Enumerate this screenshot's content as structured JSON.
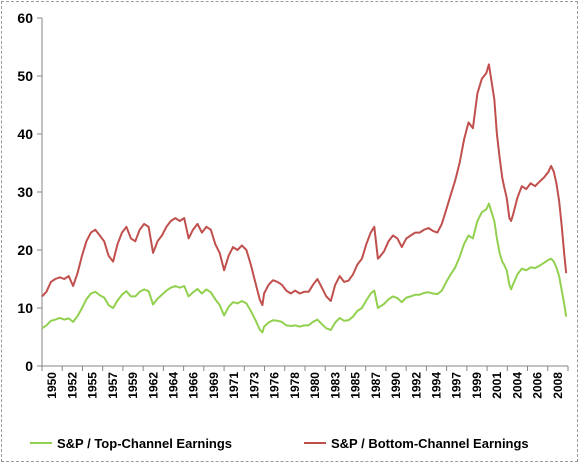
{
  "chart_data": {
    "type": "line",
    "title": "",
    "xlabel": "",
    "ylabel": "",
    "ylim": [
      0,
      60
    ],
    "xlim": [
      1950,
      2009.2
    ],
    "yticks": [
      "0",
      "10",
      "20",
      "30",
      "40",
      "50",
      "60"
    ],
    "xticks": [
      "1950",
      "1952",
      "1955",
      "1957",
      "1959",
      "1962",
      "1964",
      "1966",
      "1969",
      "1971",
      "1973",
      "1976",
      "1978",
      "1980",
      "1983",
      "1985",
      "1987",
      "1990",
      "1992",
      "1994",
      "1997",
      "1999",
      "2001",
      "2004",
      "2006",
      "2008"
    ],
    "grid": false,
    "legend_position": "bottom",
    "series": [
      {
        "name": "S&P / Top-Channel Earnings",
        "color": "#92d050",
        "points": [
          [
            1950.0,
            6.5
          ],
          [
            1950.5,
            7.0
          ],
          [
            1951.0,
            7.8
          ],
          [
            1951.5,
            8.0
          ],
          [
            1952.0,
            8.3
          ],
          [
            1952.5,
            8.0
          ],
          [
            1953.0,
            8.2
          ],
          [
            1953.5,
            7.6
          ],
          [
            1954.0,
            8.6
          ],
          [
            1954.5,
            10.0
          ],
          [
            1955.0,
            11.5
          ],
          [
            1955.5,
            12.5
          ],
          [
            1956.0,
            12.8
          ],
          [
            1956.5,
            12.2
          ],
          [
            1957.0,
            11.8
          ],
          [
            1957.5,
            10.5
          ],
          [
            1958.0,
            10.0
          ],
          [
            1958.5,
            11.3
          ],
          [
            1959.0,
            12.3
          ],
          [
            1959.5,
            12.9
          ],
          [
            1960.0,
            12.0
          ],
          [
            1960.5,
            12.0
          ],
          [
            1961.0,
            12.8
          ],
          [
            1961.5,
            13.2
          ],
          [
            1962.0,
            12.9
          ],
          [
            1962.5,
            10.6
          ],
          [
            1963.0,
            11.6
          ],
          [
            1963.5,
            12.3
          ],
          [
            1964.0,
            13.0
          ],
          [
            1964.5,
            13.5
          ],
          [
            1965.0,
            13.8
          ],
          [
            1965.5,
            13.5
          ],
          [
            1966.0,
            13.8
          ],
          [
            1966.5,
            12.0
          ],
          [
            1967.0,
            12.7
          ],
          [
            1967.5,
            13.3
          ],
          [
            1968.0,
            12.5
          ],
          [
            1968.5,
            13.2
          ],
          [
            1969.0,
            12.7
          ],
          [
            1969.5,
            11.5
          ],
          [
            1970.0,
            10.5
          ],
          [
            1970.5,
            8.7
          ],
          [
            1971.0,
            10.2
          ],
          [
            1971.5,
            11.0
          ],
          [
            1972.0,
            10.8
          ],
          [
            1972.5,
            11.2
          ],
          [
            1973.0,
            10.8
          ],
          [
            1973.5,
            9.5
          ],
          [
            1974.0,
            8.0
          ],
          [
            1974.5,
            6.3
          ],
          [
            1974.8,
            5.8
          ],
          [
            1975.0,
            6.8
          ],
          [
            1975.5,
            7.5
          ],
          [
            1976.0,
            7.9
          ],
          [
            1976.5,
            7.8
          ],
          [
            1977.0,
            7.6
          ],
          [
            1977.5,
            7.0
          ],
          [
            1978.0,
            6.9
          ],
          [
            1978.5,
            7.0
          ],
          [
            1979.0,
            6.8
          ],
          [
            1979.5,
            7.0
          ],
          [
            1980.0,
            7.0
          ],
          [
            1980.5,
            7.6
          ],
          [
            1981.0,
            8.0
          ],
          [
            1981.5,
            7.2
          ],
          [
            1982.0,
            6.5
          ],
          [
            1982.5,
            6.2
          ],
          [
            1983.0,
            7.5
          ],
          [
            1983.5,
            8.3
          ],
          [
            1984.0,
            7.8
          ],
          [
            1984.5,
            7.9
          ],
          [
            1985.0,
            8.5
          ],
          [
            1985.5,
            9.5
          ],
          [
            1986.0,
            10.0
          ],
          [
            1986.5,
            11.3
          ],
          [
            1987.0,
            12.5
          ],
          [
            1987.4,
            13.0
          ],
          [
            1987.8,
            10.0
          ],
          [
            1988.0,
            10.2
          ],
          [
            1988.5,
            10.7
          ],
          [
            1989.0,
            11.5
          ],
          [
            1989.5,
            12.0
          ],
          [
            1990.0,
            11.7
          ],
          [
            1990.5,
            11.0
          ],
          [
            1991.0,
            11.8
          ],
          [
            1991.5,
            12.0
          ],
          [
            1992.0,
            12.3
          ],
          [
            1992.5,
            12.3
          ],
          [
            1993.0,
            12.6
          ],
          [
            1993.5,
            12.7
          ],
          [
            1994.0,
            12.5
          ],
          [
            1994.5,
            12.4
          ],
          [
            1995.0,
            13.0
          ],
          [
            1995.5,
            14.5
          ],
          [
            1996.0,
            15.8
          ],
          [
            1996.5,
            17.0
          ],
          [
            1997.0,
            18.8
          ],
          [
            1997.5,
            21.0
          ],
          [
            1998.0,
            22.5
          ],
          [
            1998.5,
            22.0
          ],
          [
            1999.0,
            25.0
          ],
          [
            1999.5,
            26.5
          ],
          [
            2000.0,
            27.0
          ],
          [
            2000.3,
            28.0
          ],
          [
            2000.6,
            26.5
          ],
          [
            2000.9,
            25.0
          ],
          [
            2001.2,
            22.0
          ],
          [
            2001.5,
            19.5
          ],
          [
            2001.8,
            18.0
          ],
          [
            2002.0,
            17.5
          ],
          [
            2002.3,
            16.5
          ],
          [
            2002.6,
            14.0
          ],
          [
            2002.8,
            13.2
          ],
          [
            2003.0,
            14.0
          ],
          [
            2003.5,
            15.8
          ],
          [
            2004.0,
            16.8
          ],
          [
            2004.5,
            16.5
          ],
          [
            2005.0,
            17.0
          ],
          [
            2005.5,
            16.9
          ],
          [
            2006.0,
            17.3
          ],
          [
            2006.5,
            17.8
          ],
          [
            2007.0,
            18.3
          ],
          [
            2007.3,
            18.5
          ],
          [
            2007.6,
            18.0
          ],
          [
            2007.9,
            17.0
          ],
          [
            2008.2,
            15.5
          ],
          [
            2008.5,
            13.0
          ],
          [
            2008.8,
            10.5
          ],
          [
            2009.0,
            8.5
          ]
        ]
      },
      {
        "name": "S&P / Bottom-Channel Earnings",
        "color": "#c0504d",
        "points": [
          [
            1950.0,
            12.0
          ],
          [
            1950.5,
            12.8
          ],
          [
            1951.0,
            14.5
          ],
          [
            1951.5,
            15.0
          ],
          [
            1952.0,
            15.3
          ],
          [
            1952.5,
            15.0
          ],
          [
            1953.0,
            15.5
          ],
          [
            1953.5,
            13.8
          ],
          [
            1954.0,
            16.0
          ],
          [
            1954.5,
            19.0
          ],
          [
            1955.0,
            21.5
          ],
          [
            1955.5,
            23.0
          ],
          [
            1956.0,
            23.5
          ],
          [
            1956.5,
            22.5
          ],
          [
            1957.0,
            21.5
          ],
          [
            1957.5,
            19.0
          ],
          [
            1958.0,
            18.0
          ],
          [
            1958.5,
            21.0
          ],
          [
            1959.0,
            23.0
          ],
          [
            1959.5,
            24.0
          ],
          [
            1960.0,
            22.0
          ],
          [
            1960.5,
            21.5
          ],
          [
            1961.0,
            23.5
          ],
          [
            1961.5,
            24.5
          ],
          [
            1962.0,
            24.0
          ],
          [
            1962.5,
            19.5
          ],
          [
            1963.0,
            21.5
          ],
          [
            1963.5,
            22.5
          ],
          [
            1964.0,
            24.0
          ],
          [
            1964.5,
            25.0
          ],
          [
            1965.0,
            25.5
          ],
          [
            1965.5,
            25.0
          ],
          [
            1966.0,
            25.5
          ],
          [
            1966.5,
            22.0
          ],
          [
            1967.0,
            23.5
          ],
          [
            1967.5,
            24.5
          ],
          [
            1968.0,
            23.0
          ],
          [
            1968.5,
            24.0
          ],
          [
            1969.0,
            23.5
          ],
          [
            1969.5,
            21.0
          ],
          [
            1970.0,
            19.5
          ],
          [
            1970.5,
            16.5
          ],
          [
            1971.0,
            19.0
          ],
          [
            1971.5,
            20.5
          ],
          [
            1972.0,
            20.0
          ],
          [
            1972.5,
            20.8
          ],
          [
            1973.0,
            20.0
          ],
          [
            1973.5,
            17.5
          ],
          [
            1974.0,
            14.5
          ],
          [
            1974.5,
            11.5
          ],
          [
            1974.8,
            10.5
          ],
          [
            1975.0,
            12.5
          ],
          [
            1975.5,
            14.0
          ],
          [
            1976.0,
            14.8
          ],
          [
            1976.5,
            14.5
          ],
          [
            1977.0,
            14.0
          ],
          [
            1977.5,
            13.0
          ],
          [
            1978.0,
            12.5
          ],
          [
            1978.5,
            13.0
          ],
          [
            1979.0,
            12.5
          ],
          [
            1979.5,
            12.8
          ],
          [
            1980.0,
            12.8
          ],
          [
            1980.5,
            14.0
          ],
          [
            1981.0,
            15.0
          ],
          [
            1981.5,
            13.5
          ],
          [
            1982.0,
            12.0
          ],
          [
            1982.5,
            11.2
          ],
          [
            1983.0,
            14.0
          ],
          [
            1983.5,
            15.5
          ],
          [
            1984.0,
            14.5
          ],
          [
            1984.5,
            14.7
          ],
          [
            1985.0,
            15.8
          ],
          [
            1985.5,
            17.5
          ],
          [
            1986.0,
            18.5
          ],
          [
            1986.5,
            21.0
          ],
          [
            1987.0,
            23.0
          ],
          [
            1987.4,
            24.0
          ],
          [
            1987.8,
            18.5
          ],
          [
            1988.0,
            18.8
          ],
          [
            1988.5,
            19.8
          ],
          [
            1989.0,
            21.5
          ],
          [
            1989.5,
            22.5
          ],
          [
            1990.0,
            22.0
          ],
          [
            1990.5,
            20.5
          ],
          [
            1991.0,
            22.0
          ],
          [
            1991.5,
            22.5
          ],
          [
            1992.0,
            23.0
          ],
          [
            1992.5,
            23.0
          ],
          [
            1993.0,
            23.5
          ],
          [
            1993.5,
            23.8
          ],
          [
            1994.0,
            23.3
          ],
          [
            1994.5,
            23.0
          ],
          [
            1995.0,
            24.5
          ],
          [
            1995.5,
            27.0
          ],
          [
            1996.0,
            29.5
          ],
          [
            1996.5,
            32.0
          ],
          [
            1997.0,
            35.0
          ],
          [
            1997.5,
            39.0
          ],
          [
            1998.0,
            42.0
          ],
          [
            1998.5,
            41.0
          ],
          [
            1999.0,
            47.0
          ],
          [
            1999.5,
            49.5
          ],
          [
            2000.0,
            50.5
          ],
          [
            2000.3,
            52.0
          ],
          [
            2000.6,
            49.0
          ],
          [
            2000.9,
            46.0
          ],
          [
            2001.2,
            40.0
          ],
          [
            2001.5,
            36.0
          ],
          [
            2001.8,
            32.5
          ],
          [
            2002.0,
            31.0
          ],
          [
            2002.3,
            29.0
          ],
          [
            2002.6,
            25.5
          ],
          [
            2002.8,
            25.0
          ],
          [
            2003.0,
            26.0
          ],
          [
            2003.5,
            29.0
          ],
          [
            2004.0,
            31.0
          ],
          [
            2004.5,
            30.5
          ],
          [
            2005.0,
            31.5
          ],
          [
            2005.5,
            31.0
          ],
          [
            2006.0,
            31.8
          ],
          [
            2006.5,
            32.5
          ],
          [
            2007.0,
            33.5
          ],
          [
            2007.3,
            34.5
          ],
          [
            2007.6,
            33.5
          ],
          [
            2007.9,
            31.5
          ],
          [
            2008.2,
            28.5
          ],
          [
            2008.5,
            24.0
          ],
          [
            2008.8,
            19.0
          ],
          [
            2009.0,
            16.0
          ]
        ]
      }
    ]
  }
}
